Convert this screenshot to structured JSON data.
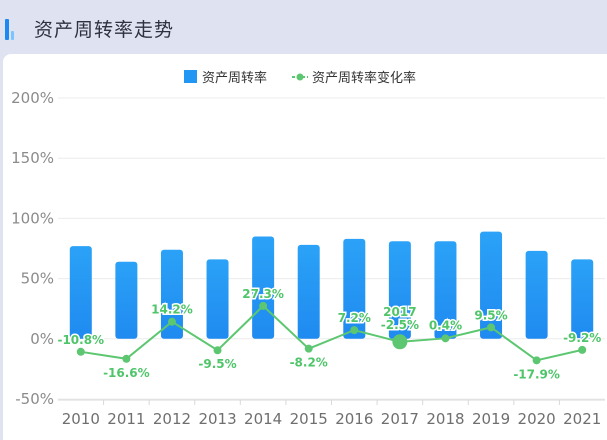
{
  "header": {
    "title": "资产周转率走势"
  },
  "colors": {
    "bar": "#2196f3",
    "bar_top": "#2aa0f6",
    "line": "#5cc770"
  },
  "chart_data": {
    "type": "bar",
    "title": "资产周转率走势",
    "categories": [
      "2010",
      "2011",
      "2012",
      "2013",
      "2014",
      "2015",
      "2016",
      "2017",
      "2018",
      "2019",
      "2020",
      "2021"
    ],
    "series": [
      {
        "name": "资产周转率",
        "type": "bar",
        "values": [
          77,
          64,
          74,
          66,
          85,
          78,
          83,
          81,
          81,
          89,
          73,
          66
        ]
      },
      {
        "name": "资产周转率变化率",
        "type": "line",
        "values": [
          -10.8,
          -16.6,
          14.2,
          -9.5,
          27.3,
          -8.2,
          7.2,
          -2.5,
          0.4,
          9.5,
          -17.9,
          -9.2
        ],
        "labels": [
          "-10.8%",
          "-16.6%",
          "14.2%",
          "-9.5%",
          "27.3%",
          "-8.2%",
          "7.2%",
          "-2.5%",
          "0.4%",
          "9.5%",
          "-17.9%",
          "-9.2%"
        ]
      }
    ],
    "y_ticks": [
      "200%",
      "150%",
      "100%",
      "50%",
      "0%",
      "-50%"
    ],
    "ylim": [
      -50,
      200
    ],
    "highlight": {
      "category": "2017",
      "label": "2017"
    },
    "legend": {
      "position": "top-center"
    },
    "grid": true
  }
}
